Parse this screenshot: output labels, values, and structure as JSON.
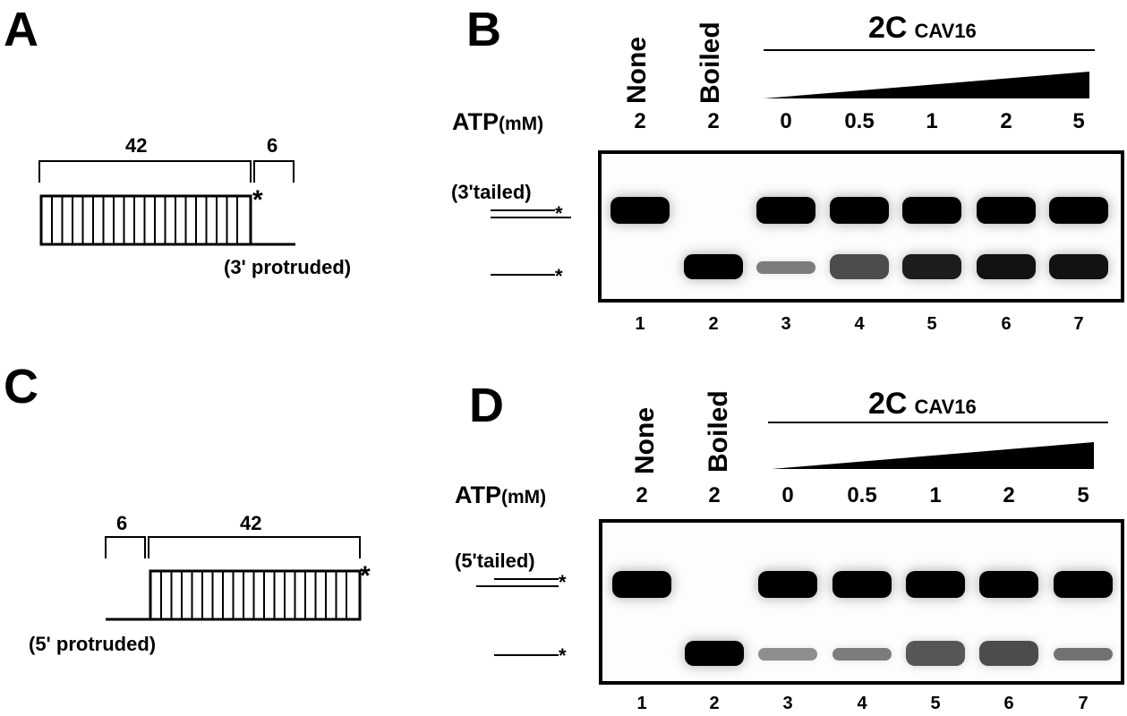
{
  "panel_A": {
    "letter": "A",
    "len_left": "42",
    "len_right": "6",
    "strand_marker": "*",
    "caption": "(3' protruded)"
  },
  "panel_B": {
    "letter": "B",
    "lane_header_none": "None",
    "lane_header_boiled": "Boiled",
    "protein_label": "2C",
    "protein_sub": "CAV16",
    "atp_label": "ATP",
    "atp_unit": "(mM)",
    "atp_values": [
      "2",
      "2",
      "0",
      "0.5",
      "1",
      "2",
      "5"
    ],
    "lane_numbers": [
      "1",
      "2",
      "3",
      "4",
      "5",
      "6",
      "7"
    ],
    "substrate_label": "(3'tailed)",
    "marker": "*",
    "band_intensity": {
      "duplex": [
        1.0,
        0.0,
        1.0,
        1.0,
        1.0,
        1.0,
        1.0
      ],
      "single": [
        0.0,
        1.0,
        0.35,
        0.6,
        0.85,
        0.9,
        0.9
      ]
    }
  },
  "panel_C": {
    "letter": "C",
    "len_left": "6",
    "len_right": "42",
    "strand_marker": "*",
    "caption": "(5' protruded)"
  },
  "panel_D": {
    "letter": "D",
    "lane_header_none": "None",
    "lane_header_boiled": "Boiled",
    "protein_label": "2C",
    "protein_sub": "CAV16",
    "atp_label": "ATP",
    "atp_unit": "(mM)",
    "atp_values": [
      "2",
      "2",
      "0",
      "0.5",
      "1",
      "2",
      "5"
    ],
    "lane_numbers": [
      "1",
      "2",
      "3",
      "4",
      "5",
      "6",
      "7"
    ],
    "substrate_label": "(5'tailed)",
    "marker": "*",
    "band_intensity": {
      "duplex": [
        1.0,
        0.0,
        1.0,
        1.0,
        1.0,
        1.0,
        1.0
      ],
      "single": [
        0.0,
        1.0,
        0.25,
        0.35,
        0.55,
        0.6,
        0.4
      ]
    }
  }
}
